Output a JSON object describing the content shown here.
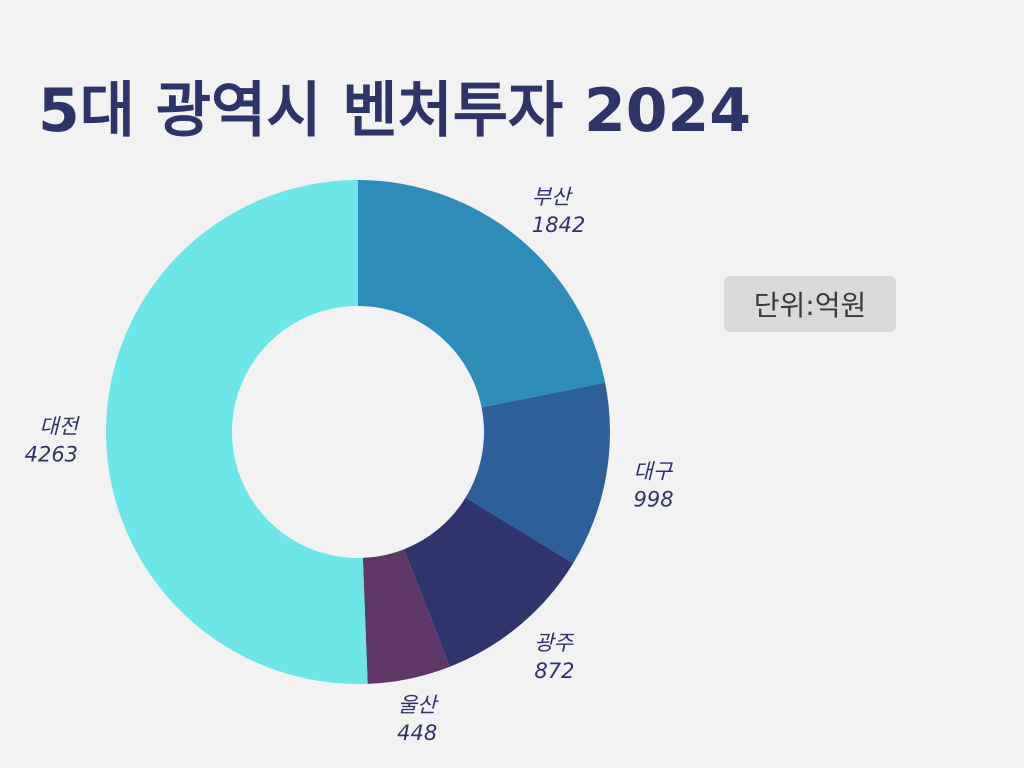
{
  "title": "5대 광역시 벤처투자 2024",
  "unit_note": "단위:억원",
  "chart_data": {
    "type": "pie",
    "title": "5대 광역시 벤처투자 2024",
    "unit": "단위:억원",
    "categories": [
      "부산",
      "대구",
      "광주",
      "울산",
      "대전"
    ],
    "values": [
      1842,
      998,
      872,
      448,
      4263
    ],
    "colors": [
      "#2e8cb9",
      "#2d5f98",
      "#2f346c",
      "#5f3766",
      "#6ce6e9"
    ],
    "donut": true,
    "start_angle_deg": 0,
    "direction": "clockwise"
  }
}
